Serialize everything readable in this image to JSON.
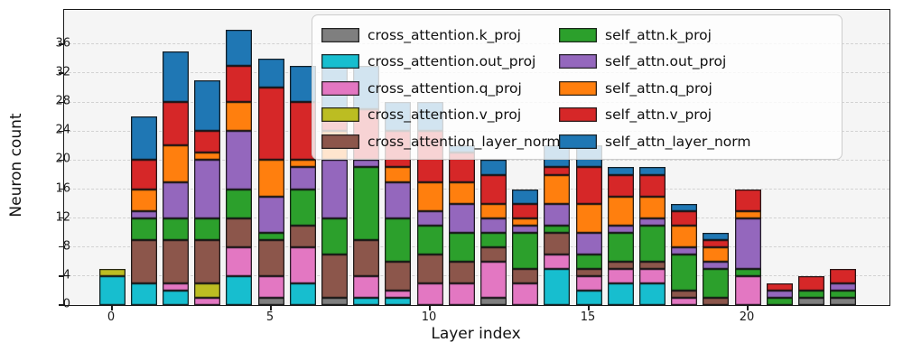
{
  "figure": {
    "xlabel": "Layer index",
    "ylabel": "Neuron count"
  },
  "chart_data": {
    "type": "bar",
    "stacked": true,
    "title": "",
    "xlabel": "Layer index",
    "ylabel": "Neuron count",
    "grid": "horizontal dashed gridlines on light gray background",
    "legend_position": "upper center, 2 columns, semi-transparent",
    "categories": [
      0,
      1,
      2,
      3,
      4,
      5,
      6,
      7,
      8,
      9,
      10,
      11,
      12,
      13,
      14,
      15,
      16,
      17,
      18,
      19,
      20,
      21,
      22,
      23
    ],
    "x_ticks": [
      0,
      5,
      10,
      15,
      20
    ],
    "y_ticks": [
      0,
      4,
      8,
      12,
      16,
      20,
      24,
      28,
      32,
      36
    ],
    "ylim": [
      0,
      40.7
    ],
    "totals": [
      5,
      26,
      35,
      31,
      38,
      34,
      33,
      33,
      33,
      28,
      28,
      22,
      20,
      16,
      22,
      22,
      19,
      19,
      14,
      10,
      16,
      3,
      4,
      5
    ],
    "series": [
      {
        "name": "cross_attention.k_proj",
        "color": "#7f7f7f",
        "values": [
          0,
          0,
          0,
          0,
          0,
          1,
          0,
          1,
          0,
          0,
          0,
          0,
          1,
          0,
          0,
          0,
          0,
          0,
          0,
          0,
          0,
          0,
          1,
          1
        ]
      },
      {
        "name": "cross_attention.out_proj",
        "color": "#17becf",
        "values": [
          4,
          3,
          2,
          0,
          4,
          0,
          3,
          0,
          1,
          1,
          0,
          0,
          0,
          0,
          5,
          2,
          3,
          3,
          0,
          0,
          0,
          0,
          0,
          0
        ]
      },
      {
        "name": "cross_attention.q_proj",
        "color": "#e377c2",
        "values": [
          0,
          0,
          1,
          1,
          4,
          3,
          5,
          0,
          3,
          1,
          3,
          3,
          5,
          3,
          2,
          2,
          2,
          2,
          1,
          0,
          4,
          0,
          0,
          0
        ]
      },
      {
        "name": "cross_attention.v_proj",
        "color": "#bcbd22",
        "values": [
          1,
          0,
          0,
          2,
          0,
          0,
          0,
          0,
          0,
          0,
          0,
          0,
          0,
          0,
          0,
          0,
          0,
          0,
          0,
          0,
          0,
          0,
          0,
          0
        ]
      },
      {
        "name": "cross_attention_layer_norm",
        "color": "#8c564b",
        "values": [
          0,
          6,
          6,
          6,
          4,
          5,
          3,
          6,
          5,
          4,
          4,
          3,
          2,
          2,
          3,
          1,
          1,
          1,
          1,
          1,
          0,
          0,
          0,
          0
        ]
      },
      {
        "name": "self_attn.k_proj",
        "color": "#2ca02c",
        "values": [
          0,
          3,
          3,
          3,
          4,
          1,
          5,
          5,
          10,
          6,
          4,
          4,
          2,
          5,
          1,
          2,
          4,
          5,
          5,
          4,
          1,
          1,
          1,
          1
        ]
      },
      {
        "name": "self_attn.out_proj",
        "color": "#9467bd",
        "values": [
          0,
          1,
          5,
          8,
          8,
          5,
          3,
          8,
          1,
          5,
          2,
          4,
          2,
          1,
          3,
          3,
          1,
          1,
          1,
          1,
          7,
          1,
          0,
          1
        ]
      },
      {
        "name": "self_attn.q_proj",
        "color": "#ff7f0e",
        "values": [
          0,
          3,
          5,
          1,
          4,
          5,
          1,
          4,
          0,
          2,
          4,
          3,
          2,
          1,
          4,
          4,
          4,
          3,
          3,
          2,
          1,
          0,
          0,
          0
        ]
      },
      {
        "name": "self_attn.v_proj",
        "color": "#d62728",
        "values": [
          0,
          4,
          6,
          3,
          5,
          10,
          8,
          3,
          7,
          5,
          7,
          4,
          4,
          2,
          1,
          5,
          3,
          3,
          2,
          1,
          3,
          1,
          2,
          2
        ]
      },
      {
        "name": "self_attn_layer_norm",
        "color": "#1f77b4",
        "values": [
          0,
          6,
          7,
          7,
          5,
          4,
          5,
          6,
          6,
          4,
          4,
          1,
          2,
          2,
          3,
          3,
          1,
          1,
          1,
          1,
          0,
          0,
          0,
          0
        ]
      }
    ]
  }
}
